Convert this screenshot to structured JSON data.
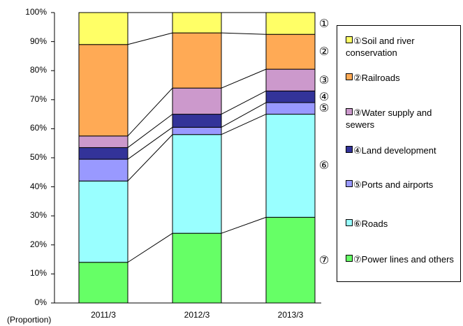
{
  "chart_data": {
    "type": "bar",
    "stacked": true,
    "normalized": true,
    "categories": [
      "2011/3",
      "2012/3",
      "2013/3"
    ],
    "ylim": [
      0,
      100
    ],
    "y_ticks": [
      "0%",
      "10%",
      "20%",
      "30%",
      "40%",
      "50%",
      "60%",
      "70%",
      "80%",
      "90%",
      "100%"
    ],
    "unit_note": "(Proportion)",
    "legend_position": "right",
    "series_connector_lines": true,
    "series": [
      {
        "marker": "⑦",
        "name": "⑦Power lines and others",
        "color": "#66ff66",
        "values": [
          14,
          24,
          29.5
        ]
      },
      {
        "marker": "⑥",
        "name": "⑥Roads",
        "color": "#99ffff",
        "values": [
          28,
          34,
          35.5
        ]
      },
      {
        "marker": "⑤",
        "name": "⑤Ports and airports",
        "color": "#9999ff",
        "values": [
          7.5,
          2.5,
          4
        ]
      },
      {
        "marker": "④",
        "name": "④Land development",
        "color": "#333399",
        "values": [
          4,
          4.5,
          4
        ]
      },
      {
        "marker": "③",
        "name": "③Water supply and sewers",
        "color": "#cc99cc",
        "values": [
          4,
          9,
          7.5
        ]
      },
      {
        "marker": "②",
        "name": "②Railroads",
        "color": "#ffaa55",
        "values": [
          31.5,
          19,
          12
        ]
      },
      {
        "marker": "①",
        "name": "①Soil and river conservation",
        "color": "#ffff66",
        "values": [
          11,
          7,
          7.5
        ]
      }
    ]
  }
}
